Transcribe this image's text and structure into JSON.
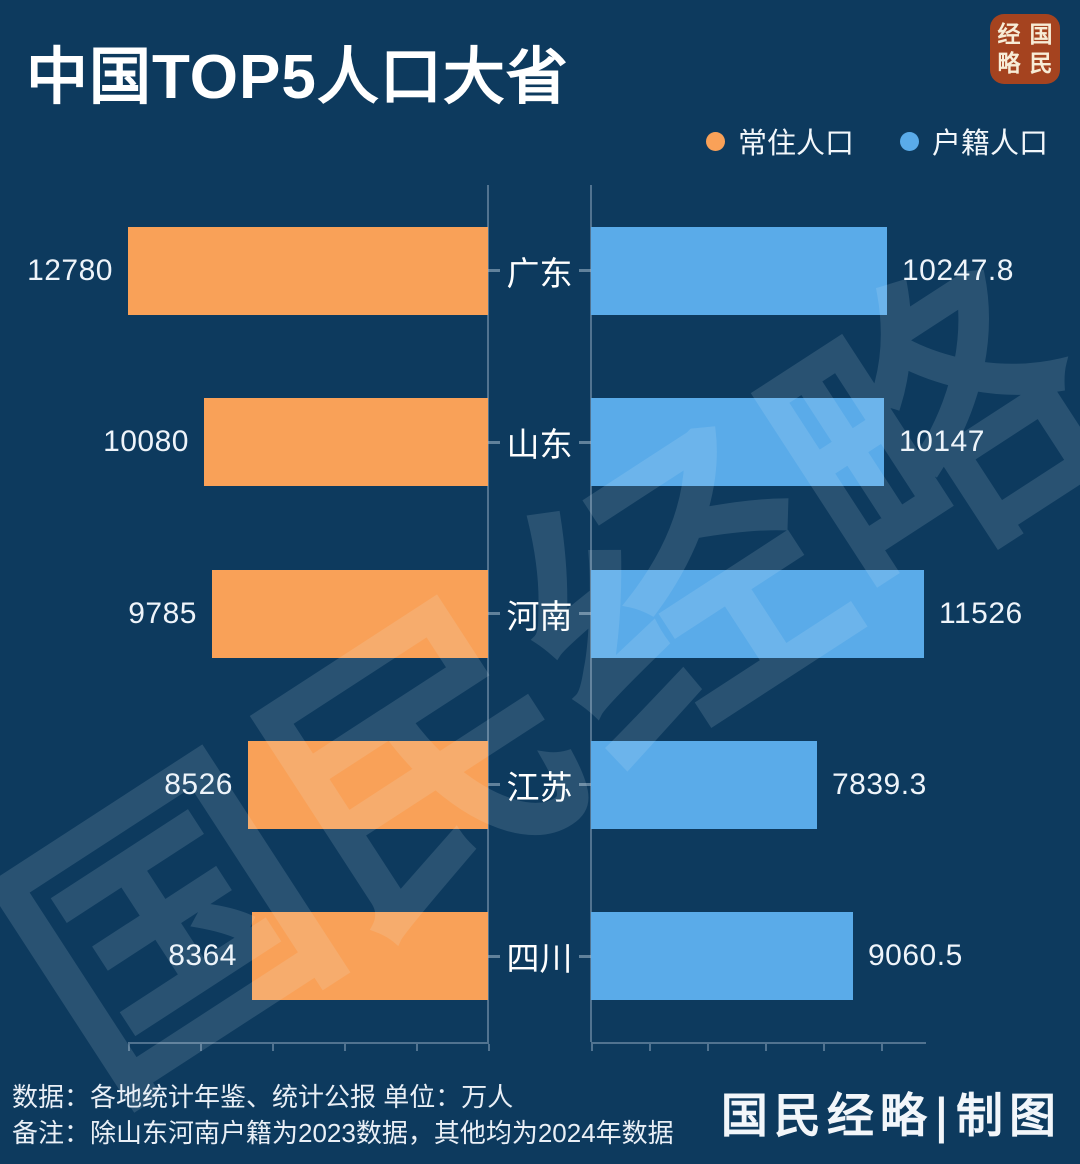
{
  "title": "中国TOP5人口大省",
  "seal": {
    "left_column": "经略",
    "right_column": "国民",
    "color": "#a5431f"
  },
  "legend": [
    {
      "label": "常住人口",
      "color": "#f9a158"
    },
    {
      "label": "户籍人口",
      "color": "#5aabe9"
    }
  ],
  "chart_data": {
    "type": "bar",
    "orientation": "horizontal-mirrored",
    "title": "中国TOP5人口大省",
    "unit": "万人",
    "categories": [
      "广东",
      "山东",
      "河南",
      "江苏",
      "四川"
    ],
    "series": [
      {
        "name": "常住人口",
        "side": "left",
        "color": "#f9a158",
        "values": [
          12780,
          10080,
          9785,
          8526,
          8364
        ]
      },
      {
        "name": "户籍人口",
        "side": "right",
        "color": "#5aabe9",
        "values": [
          10247.8,
          10147,
          11526,
          7839.3,
          9060.5
        ]
      }
    ],
    "xlim_left": [
      0,
      12780
    ],
    "xlim_right": [
      0,
      11526
    ],
    "grid": false,
    "legend_position": "top-right"
  },
  "watermark": "国民经略",
  "footer": {
    "source_line": "数据：各地统计年鉴、统计公报 单位：万人",
    "note_line": "备注：除山东河南户籍为2023数据，其他均为2024年数据",
    "credit": "国民经略|制图"
  },
  "colors": {
    "background": "#0d3a5e",
    "resident_bar": "#f9a158",
    "registered_bar": "#5aabe9",
    "seal": "#a5431f",
    "axis": "rgba(176,196,214,0.42)"
  }
}
